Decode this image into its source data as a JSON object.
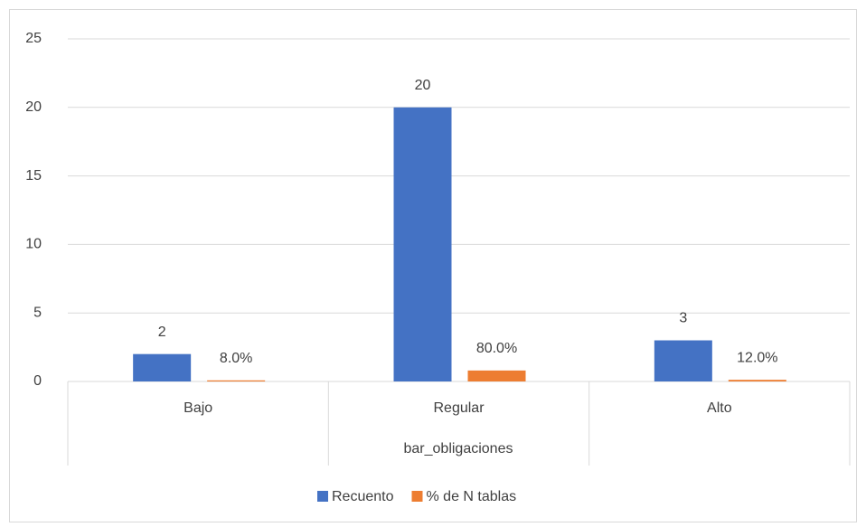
{
  "chart_data": {
    "type": "bar",
    "categories": [
      "Bajo",
      "Regular",
      "Alto"
    ],
    "series": [
      {
        "name": "Recuento",
        "color": "#4472c4",
        "values": [
          2,
          20,
          3
        ]
      },
      {
        "name": "% de N tablas",
        "color": "#ed7d31",
        "values": [
          0.08,
          0.8,
          0.12
        ],
        "value_labels": [
          "8.0%",
          "80.0%",
          "12.0%"
        ]
      }
    ],
    "x_axis_label": "bar_obligaciones",
    "ylim": [
      0,
      25
    ],
    "yticks": [
      0,
      5,
      10,
      15,
      20,
      25
    ],
    "grid": true,
    "legend": "bottom"
  }
}
